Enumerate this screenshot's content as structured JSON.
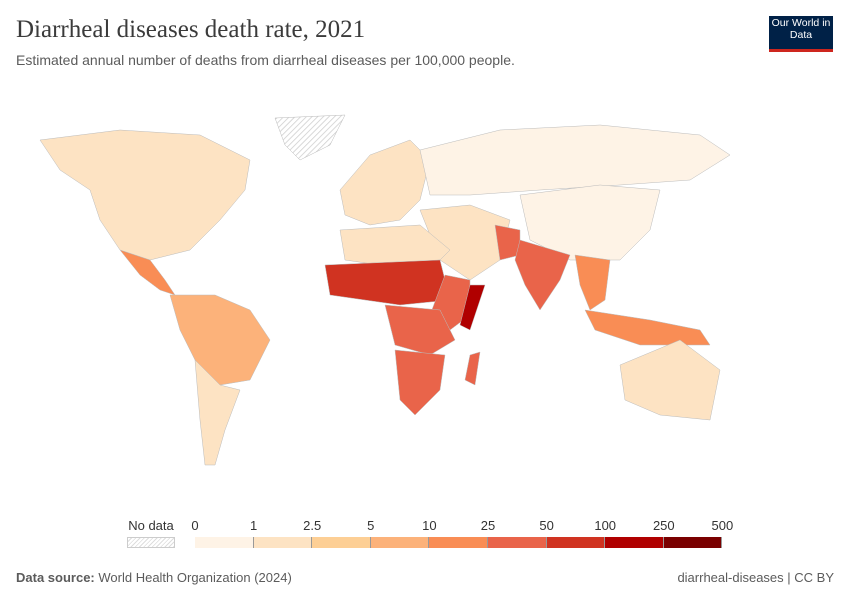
{
  "header": {
    "title": "Diarrheal diseases death rate, 2021",
    "subtitle": "Estimated annual number of deaths from diarrheal diseases per 100,000 people.",
    "logo": "Our World in Data"
  },
  "chart_data": {
    "type": "choropleth",
    "title": "Diarrheal diseases death rate, 2021",
    "subtitle": "Estimated annual number of deaths from diarrheal diseases per 100,000 people.",
    "legend": {
      "no_data_label": "No data",
      "ticks": [
        "0",
        "1",
        "2.5",
        "5",
        "10",
        "25",
        "50",
        "100",
        "250",
        "500"
      ],
      "colors": [
        "#fef3e6",
        "#fde3c3",
        "#fdcf95",
        "#fcb27a",
        "#f98d55",
        "#e9644a",
        "#d03321",
        "#b00000",
        "#7a0000"
      ]
    },
    "regions": [
      {
        "name": "North America",
        "value": 1.5
      },
      {
        "name": "Central America",
        "value": 12
      },
      {
        "name": "South America north",
        "value": 6
      },
      {
        "name": "South America south",
        "value": 1.5
      },
      {
        "name": "Greenland",
        "value": null
      },
      {
        "name": "Europe",
        "value": 2
      },
      {
        "name": "Russia",
        "value": 0.8
      },
      {
        "name": "China",
        "value": 0.8
      },
      {
        "name": "Middle East",
        "value": 1.5
      },
      {
        "name": "North Africa",
        "value": 1.5
      },
      {
        "name": "Sahel",
        "value": 70
      },
      {
        "name": "East Africa",
        "value": 30
      },
      {
        "name": "Somalia",
        "value": 200
      },
      {
        "name": "Central Africa",
        "value": 40
      },
      {
        "name": "Southern Africa",
        "value": 30
      },
      {
        "name": "Madagascar",
        "value": 30
      },
      {
        "name": "Pakistan",
        "value": 40
      },
      {
        "name": "India",
        "value": 30
      },
      {
        "name": "Southeast Asia",
        "value": 12
      },
      {
        "name": "Indonesia",
        "value": 20
      },
      {
        "name": "Australia",
        "value": 1.5
      }
    ]
  },
  "footer": {
    "source_label": "Data source:",
    "source": "World Health Organization (2024)",
    "slug": "diarrheal-diseases | CC BY"
  }
}
